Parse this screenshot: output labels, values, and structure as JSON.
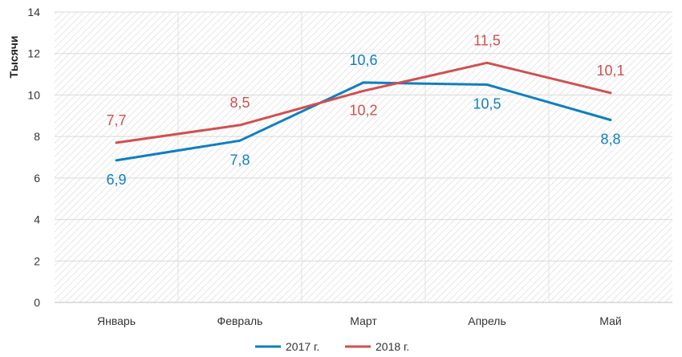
{
  "chart_data": {
    "type": "line",
    "title": "",
    "xlabel": "",
    "ylabel": "Тысячи",
    "ylim": [
      0,
      14
    ],
    "yticks": [
      "0",
      "2",
      "4",
      "6",
      "8",
      "10",
      "12",
      "14"
    ],
    "grid": "horizontal",
    "legend_position": "bottom-center",
    "categories": [
      "Январь",
      "Февраль",
      "Март",
      "Апрель",
      "Май"
    ],
    "series": [
      {
        "name": "2017 г.",
        "color": "#0f7fbf",
        "values": [
          6.85,
          7.8,
          10.6,
          10.5,
          8.8
        ],
        "labels": [
          "6,9",
          "7,8",
          "10,6",
          "10,5",
          "8,8"
        ],
        "label_position": [
          "below",
          "below",
          "above",
          "below",
          "below"
        ]
      },
      {
        "name": "2018 г.",
        "color": "#d05050",
        "values": [
          7.7,
          8.55,
          10.2,
          11.55,
          10.1
        ],
        "labels": [
          "7,7",
          "8,5",
          "10,2",
          "11,5",
          "10,1"
        ],
        "label_position": [
          "above",
          "above",
          "below",
          "above",
          "above"
        ]
      }
    ]
  }
}
